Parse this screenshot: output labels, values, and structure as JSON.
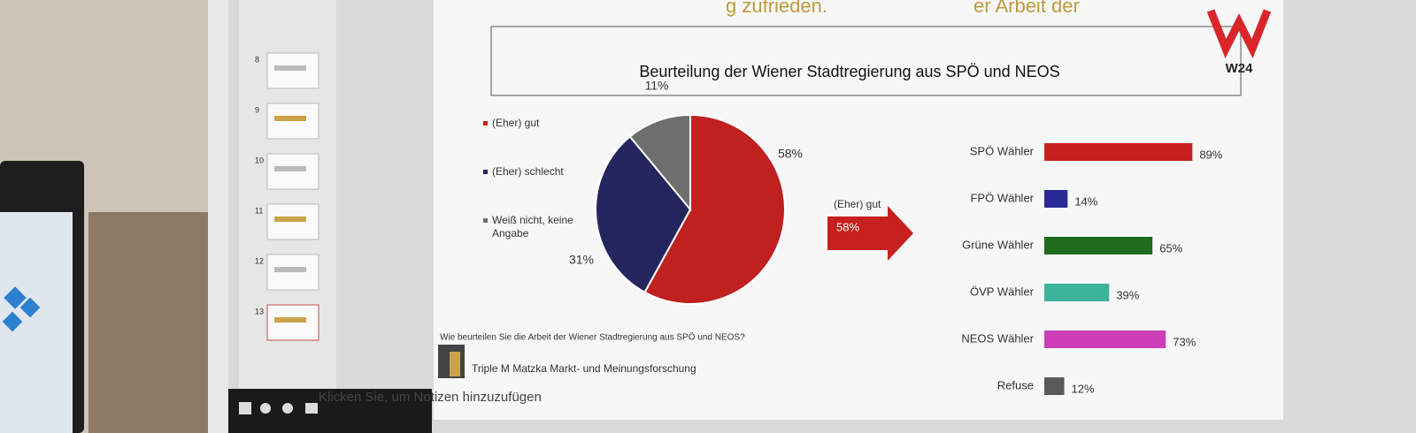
{
  "slide": {
    "title_fragment_left": "g zufrieden.",
    "title_fragment_right": "er Arbeit der",
    "logo": "W24",
    "arrow": {
      "label": "(Eher) gut",
      "value": "58%"
    },
    "question": "Wie beurteilen Sie die Arbeit der Wiener Stadtregierung aus SPÖ und NEOS?",
    "source": "Triple M Matzka Markt- und Meinungsforschung"
  },
  "thumbnails": [
    "8",
    "9",
    "10",
    "11",
    "12",
    "13"
  ],
  "notes_placeholder": "Klicken Sie, um Notizen hinzuzufügen",
  "chart_data": [
    {
      "type": "pie",
      "title": "Beurteilung der Wiener Stadtregierung aus SPÖ und NEOS",
      "categories": [
        "(Eher) gut",
        "(Eher) schlecht",
        "Weiß nicht, keine Angabe"
      ],
      "values": [
        58,
        31,
        11
      ],
      "value_labels": [
        "58%",
        "31%",
        "11%"
      ],
      "colors": [
        "#c0201f",
        "#26265f",
        "#6e6e6e"
      ]
    },
    {
      "type": "bar",
      "orientation": "horizontal",
      "categories": [
        "SPÖ Wähler",
        "FPÖ Wähler",
        "Grüne Wähler",
        "ÖVP Wähler",
        "NEOS Wähler",
        "Refuse"
      ],
      "values": [
        89,
        14,
        65,
        39,
        73,
        12
      ],
      "value_labels": [
        "89%",
        "14%",
        "65%",
        "39%",
        "73%",
        "12%"
      ],
      "colors": [
        "#c8201f",
        "#2a2a96",
        "#1f6b1f",
        "#3cb39a",
        "#cc3fb8",
        "#5a5a5a"
      ]
    }
  ]
}
